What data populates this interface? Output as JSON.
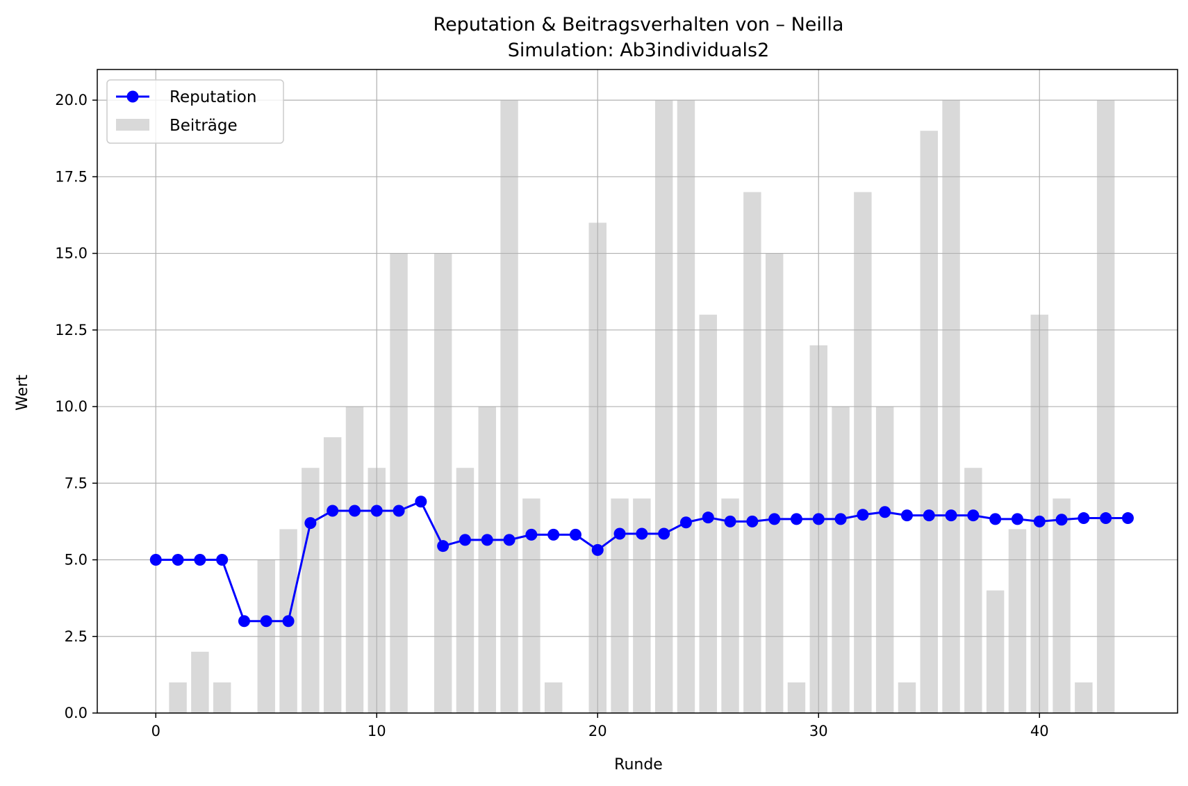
{
  "chart_data": {
    "type": "bar+line",
    "title": "Reputation & Beitragsverhalten von – Neilla",
    "subtitle": "Simulation: Ab3individuals2",
    "xlabel": "Runde",
    "ylabel": "Wert",
    "xlim": [
      -2.65,
      46.25
    ],
    "ylim": [
      0,
      21
    ],
    "x_ticks": [
      0,
      10,
      20,
      30,
      40
    ],
    "y_ticks": [
      0.0,
      2.5,
      5.0,
      7.5,
      10.0,
      12.5,
      15.0,
      17.5,
      20.0
    ],
    "y_tick_labels": [
      "0.0",
      "2.5",
      "5.0",
      "7.5",
      "10.0",
      "12.5",
      "15.0",
      "17.5",
      "20.0"
    ],
    "grid": true,
    "legend_position": "top-left",
    "colors": {
      "reputation": "#0000ff",
      "contributions": "#d9d9d9",
      "grid": "#b0b0b0"
    },
    "rounds": [
      0,
      1,
      2,
      3,
      4,
      5,
      6,
      7,
      8,
      9,
      10,
      11,
      12,
      13,
      14,
      15,
      16,
      17,
      18,
      19,
      20,
      21,
      22,
      23,
      24,
      25,
      26,
      27,
      28,
      29,
      30,
      31,
      32,
      33,
      34,
      35,
      36,
      37,
      38,
      39,
      40,
      41,
      42,
      43,
      44
    ],
    "series": [
      {
        "name": "Reputation",
        "kind": "line",
        "marker": "circle",
        "values": [
          5.0,
          5.0,
          5.0,
          5.0,
          3.0,
          3.0,
          3.0,
          6.2,
          6.6,
          6.6,
          6.6,
          6.6,
          6.9,
          5.45,
          5.65,
          5.65,
          5.65,
          5.82,
          5.82,
          5.82,
          5.32,
          5.85,
          5.85,
          5.85,
          6.22,
          6.38,
          6.25,
          6.25,
          6.33,
          6.33,
          6.33,
          6.33,
          6.47,
          6.56,
          6.45,
          6.45,
          6.45,
          6.45,
          6.33,
          6.33,
          6.25,
          6.31,
          6.36,
          6.36,
          6.36
        ]
      },
      {
        "name": "Beiträge",
        "kind": "bar",
        "values": [
          0,
          1,
          2,
          1,
          0,
          5,
          6,
          8,
          9,
          10,
          8,
          15,
          0,
          15,
          8,
          10,
          20,
          7,
          1,
          0,
          16,
          7,
          7,
          20,
          20,
          13,
          7,
          17,
          15,
          1,
          12,
          10,
          17,
          10,
          1,
          19,
          20,
          8,
          4,
          6,
          13,
          7,
          1,
          20,
          0
        ]
      }
    ]
  }
}
